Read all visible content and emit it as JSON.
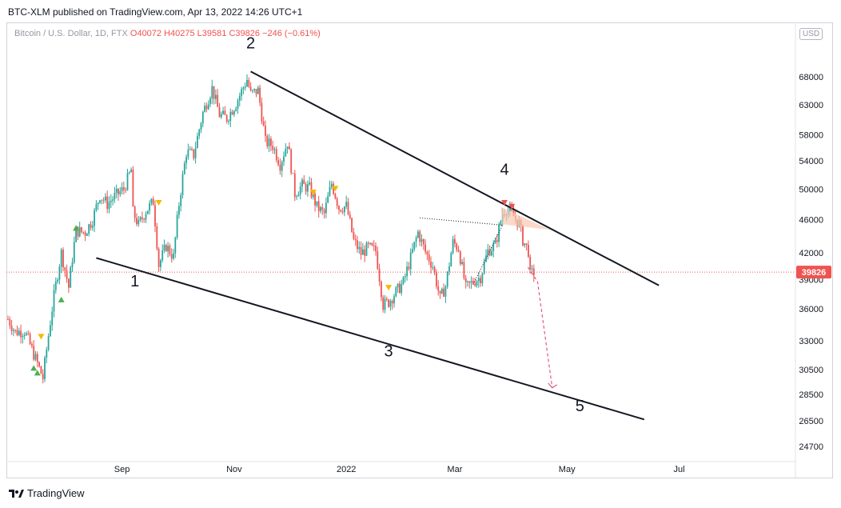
{
  "header": {
    "published": "BTC-XLM published on TradingView.com, Apr 13, 2022 14:26 UTC+1",
    "symbol": "Bitcoin / U.S. Dollar, 1D, FTX",
    "ohlc": "O40072 H40275 L39581 C39826 −246 (−0.61%)",
    "currency": "USD"
  },
  "footer": {
    "brand": "TradingView"
  },
  "chart_data": {
    "type": "candlestick",
    "x_labels": [
      "Sep",
      "Nov",
      "2022",
      "Mar",
      "May",
      "Jul"
    ],
    "y_ticks": [
      24700,
      26500,
      28500,
      30500,
      33000,
      36000,
      39000,
      42000,
      46000,
      50000,
      54000,
      58000,
      63000,
      68000
    ],
    "y_tick_labels": [
      "24700",
      "26500",
      "28500",
      "30500",
      "33000",
      "36000",
      "39000",
      "42000",
      "46000",
      "50000",
      "54000",
      "58000",
      "63000",
      "68000"
    ],
    "y_scale": "log",
    "ylim": [
      23500,
      75000
    ],
    "last_price": 39826,
    "last_price_label": "39826",
    "colors": {
      "up": "#26a69a",
      "down": "#ef5350",
      "trendline": "#131722",
      "triangle_fill": "#f9c9b0",
      "projection": "#e05a8a"
    },
    "wave_labels": [
      {
        "label": "1",
        "date": "2021-09-08",
        "price": 38300
      },
      {
        "label": "2",
        "date": "2021-11-10",
        "price": 73500
      },
      {
        "label": "3",
        "date": "2022-01-24",
        "price": 31600
      },
      {
        "label": "4",
        "date": "2022-03-28",
        "price": 52000
      },
      {
        "label": "5",
        "date": "2022-05-08",
        "price": 27200
      }
    ],
    "upper_trendline": [
      {
        "date": "2021-11-10",
        "price": 69000
      },
      {
        "date": "2022-06-20",
        "price": 38400
      }
    ],
    "lower_trendline": [
      {
        "date": "2021-08-18",
        "price": 41400
      },
      {
        "date": "2022-06-12",
        "price": 26600
      }
    ],
    "projection": [
      {
        "date": "2022-04-15",
        "price": 38800
      },
      {
        "date": "2022-04-23",
        "price": 29000
      }
    ],
    "closes": [
      {
        "d": "2021-07-01",
        "c": 35000
      },
      {
        "d": "2021-07-05",
        "c": 33800
      },
      {
        "d": "2021-07-10",
        "c": 33900
      },
      {
        "d": "2021-07-15",
        "c": 31800
      },
      {
        "d": "2021-07-20",
        "c": 29800
      },
      {
        "d": "2021-07-22",
        "c": 32200
      },
      {
        "d": "2021-07-26",
        "c": 37300
      },
      {
        "d": "2021-07-30",
        "c": 42000
      },
      {
        "d": "2021-08-03",
        "c": 38200
      },
      {
        "d": "2021-08-07",
        "c": 44600
      },
      {
        "d": "2021-08-12",
        "c": 44400
      },
      {
        "d": "2021-08-16",
        "c": 46000
      },
      {
        "d": "2021-08-20",
        "c": 49200
      },
      {
        "d": "2021-08-24",
        "c": 48000
      },
      {
        "d": "2021-08-28",
        "c": 49000
      },
      {
        "d": "2021-09-02",
        "c": 50000
      },
      {
        "d": "2021-09-06",
        "c": 52700
      },
      {
        "d": "2021-09-07",
        "c": 46900
      },
      {
        "d": "2021-09-10",
        "c": 45300
      },
      {
        "d": "2021-09-14",
        "c": 47100
      },
      {
        "d": "2021-09-18",
        "c": 48300
      },
      {
        "d": "2021-09-21",
        "c": 40600
      },
      {
        "d": "2021-09-25",
        "c": 42800
      },
      {
        "d": "2021-09-29",
        "c": 41500
      },
      {
        "d": "2021-10-02",
        "c": 48000
      },
      {
        "d": "2021-10-06",
        "c": 55300
      },
      {
        "d": "2021-10-10",
        "c": 54900
      },
      {
        "d": "2021-10-15",
        "c": 61600
      },
      {
        "d": "2021-10-20",
        "c": 65900
      },
      {
        "d": "2021-10-24",
        "c": 61300
      },
      {
        "d": "2021-10-28",
        "c": 60700
      },
      {
        "d": "2021-11-02",
        "c": 63200
      },
      {
        "d": "2021-11-08",
        "c": 67500
      },
      {
        "d": "2021-11-10",
        "c": 64900
      },
      {
        "d": "2021-11-14",
        "c": 65500
      },
      {
        "d": "2021-11-18",
        "c": 56900
      },
      {
        "d": "2021-11-22",
        "c": 56300
      },
      {
        "d": "2021-11-26",
        "c": 53500
      },
      {
        "d": "2021-11-30",
        "c": 56900
      },
      {
        "d": "2021-12-04",
        "c": 49400
      },
      {
        "d": "2021-12-08",
        "c": 50500
      },
      {
        "d": "2021-12-12",
        "c": 50100
      },
      {
        "d": "2021-12-16",
        "c": 47600
      },
      {
        "d": "2021-12-20",
        "c": 46700
      },
      {
        "d": "2021-12-24",
        "c": 50800
      },
      {
        "d": "2021-12-28",
        "c": 47500
      },
      {
        "d": "2022-01-01",
        "c": 47700
      },
      {
        "d": "2022-01-05",
        "c": 43400
      },
      {
        "d": "2022-01-09",
        "c": 41900
      },
      {
        "d": "2022-01-13",
        "c": 42600
      },
      {
        "d": "2022-01-17",
        "c": 42200
      },
      {
        "d": "2022-01-21",
        "c": 36400
      },
      {
        "d": "2022-01-24",
        "c": 36700
      },
      {
        "d": "2022-01-28",
        "c": 37700
      },
      {
        "d": "2022-02-01",
        "c": 38700
      },
      {
        "d": "2022-02-05",
        "c": 41400
      },
      {
        "d": "2022-02-09",
        "c": 44400
      },
      {
        "d": "2022-02-13",
        "c": 42100
      },
      {
        "d": "2022-02-17",
        "c": 40500
      },
      {
        "d": "2022-02-21",
        "c": 37000
      },
      {
        "d": "2022-02-24",
        "c": 38300
      },
      {
        "d": "2022-02-28",
        "c": 43200
      },
      {
        "d": "2022-03-03",
        "c": 42500
      },
      {
        "d": "2022-03-07",
        "c": 38100
      },
      {
        "d": "2022-03-11",
        "c": 38800
      },
      {
        "d": "2022-03-15",
        "c": 39300
      },
      {
        "d": "2022-03-19",
        "c": 42200
      },
      {
        "d": "2022-03-23",
        "c": 42900
      },
      {
        "d": "2022-03-27",
        "c": 46800
      },
      {
        "d": "2022-03-29",
        "c": 47400
      },
      {
        "d": "2022-04-02",
        "c": 46400
      },
      {
        "d": "2022-04-05",
        "c": 45500
      },
      {
        "d": "2022-04-07",
        "c": 43500
      },
      {
        "d": "2022-04-10",
        "c": 42200
      },
      {
        "d": "2022-04-11",
        "c": 39500
      },
      {
        "d": "2022-04-13",
        "c": 39826
      }
    ]
  }
}
